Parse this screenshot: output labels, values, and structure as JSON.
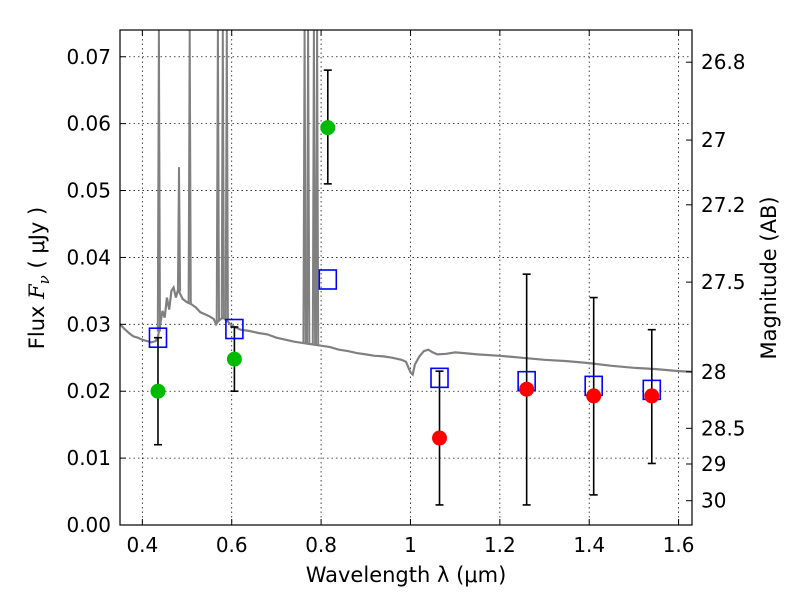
{
  "chart_data": {
    "type": "scatter",
    "xlabel": "Wavelength  λ (μm)",
    "ylabel": "Flux  F_ν  ( μJy )",
    "ylabel_parts": {
      "prefix": "Flux  ",
      "symbol": "F",
      "subscript": "ν",
      "suffix": "  ( μJy )"
    },
    "y2label": "Magnitude (AB)",
    "xlim": [
      0.35,
      1.63
    ],
    "ylim": [
      0.0,
      0.074
    ],
    "x_ticks": [
      {
        "value": 0.4,
        "label": "0.4"
      },
      {
        "value": 0.6,
        "label": "0.6"
      },
      {
        "value": 0.8,
        "label": "0.8"
      },
      {
        "value": 1.0,
        "label": "1"
      },
      {
        "value": 1.2,
        "label": "1.2"
      },
      {
        "value": 1.4,
        "label": "1.4"
      },
      {
        "value": 1.6,
        "label": "1.6"
      }
    ],
    "y_ticks": [
      {
        "value": 0.0,
        "label": "0.00"
      },
      {
        "value": 0.01,
        "label": "0.01"
      },
      {
        "value": 0.02,
        "label": "0.02"
      },
      {
        "value": 0.03,
        "label": "0.03"
      },
      {
        "value": 0.04,
        "label": "0.04"
      },
      {
        "value": 0.05,
        "label": "0.05"
      },
      {
        "value": 0.06,
        "label": "0.06"
      },
      {
        "value": 0.07,
        "label": "0.07"
      }
    ],
    "y2_ticks": [
      {
        "magnitude": 26.8,
        "label": "26.8"
      },
      {
        "magnitude": 27.0,
        "label": "27"
      },
      {
        "magnitude": 27.2,
        "label": "27.2"
      },
      {
        "magnitude": 27.5,
        "label": "27.5"
      },
      {
        "magnitude": 28.0,
        "label": "28"
      },
      {
        "magnitude": 28.5,
        "label": "28.5"
      },
      {
        "magnitude": 29.0,
        "label": "29"
      },
      {
        "magnitude": 30.0,
        "label": "30"
      }
    ],
    "grid": true,
    "colors": {
      "template": "#808080",
      "model": "#0000ff",
      "detection": "#00bb00",
      "upper_limit": "#ff0000",
      "errorbar": "#000000"
    },
    "template_spectrum": [
      [
        0.35,
        0.03
      ],
      [
        0.36,
        0.0293
      ],
      [
        0.37,
        0.0287
      ],
      [
        0.38,
        0.0282
      ],
      [
        0.39,
        0.028
      ],
      [
        0.4,
        0.0277
      ],
      [
        0.41,
        0.0275
      ],
      [
        0.42,
        0.0273
      ],
      [
        0.43,
        0.0275
      ],
      [
        0.435,
        0.0282
      ],
      [
        0.44,
        0.03
      ],
      [
        0.445,
        0.032
      ],
      [
        0.45,
        0.031
      ],
      [
        0.455,
        0.034
      ],
      [
        0.46,
        0.0322
      ],
      [
        0.465,
        0.035
      ],
      [
        0.47,
        0.0355
      ],
      [
        0.475,
        0.034
      ],
      [
        0.48,
        0.0352
      ],
      [
        0.485,
        0.0345
      ],
      [
        0.49,
        0.0338
      ],
      [
        0.5,
        0.0333
      ],
      [
        0.51,
        0.033
      ],
      [
        0.52,
        0.0325
      ],
      [
        0.53,
        0.0318
      ],
      [
        0.54,
        0.0315
      ],
      [
        0.55,
        0.0312
      ],
      [
        0.56,
        0.0308
      ],
      [
        0.565,
        0.03
      ],
      [
        0.57,
        0.0305
      ],
      [
        0.58,
        0.031
      ],
      [
        0.59,
        0.0305
      ],
      [
        0.6,
        0.0298
      ],
      [
        0.62,
        0.0292
      ],
      [
        0.64,
        0.029
      ],
      [
        0.66,
        0.0287
      ],
      [
        0.68,
        0.0285
      ],
      [
        0.7,
        0.028
      ],
      [
        0.72,
        0.0277
      ],
      [
        0.74,
        0.0274
      ],
      [
        0.76,
        0.0272
      ],
      [
        0.78,
        0.027
      ],
      [
        0.8,
        0.0268
      ],
      [
        0.82,
        0.0266
      ],
      [
        0.84,
        0.0262
      ],
      [
        0.86,
        0.026
      ],
      [
        0.88,
        0.0257
      ],
      [
        0.9,
        0.0255
      ],
      [
        0.92,
        0.0253
      ],
      [
        0.94,
        0.0252
      ],
      [
        0.96,
        0.025
      ],
      [
        0.98,
        0.0247
      ],
      [
        0.99,
        0.0244
      ],
      [
        1.0,
        0.0228
      ],
      [
        1.005,
        0.0225
      ],
      [
        1.01,
        0.024
      ],
      [
        1.02,
        0.0252
      ],
      [
        1.03,
        0.026
      ],
      [
        1.04,
        0.0262
      ],
      [
        1.05,
        0.0258
      ],
      [
        1.06,
        0.0255
      ],
      [
        1.08,
        0.0256
      ],
      [
        1.1,
        0.0258
      ],
      [
        1.12,
        0.0257
      ],
      [
        1.15,
        0.0255
      ],
      [
        1.2,
        0.0253
      ],
      [
        1.25,
        0.025
      ],
      [
        1.3,
        0.0247
      ],
      [
        1.35,
        0.0245
      ],
      [
        1.4,
        0.0242
      ],
      [
        1.45,
        0.0238
      ],
      [
        1.5,
        0.0235
      ],
      [
        1.55,
        0.0233
      ],
      [
        1.6,
        0.023
      ],
      [
        1.63,
        0.0229
      ]
    ],
    "emission_lines": [
      {
        "x": 0.437,
        "height": 0.074
      },
      {
        "x": 0.482,
        "height": 0.0535
      },
      {
        "x": 0.506,
        "height": 0.074
      },
      {
        "x": 0.569,
        "height": 0.074
      },
      {
        "x": 0.58,
        "height": 0.074
      },
      {
        "x": 0.589,
        "height": 0.074
      },
      {
        "x": 0.763,
        "height": 0.074
      },
      {
        "x": 0.771,
        "height": 0.074
      },
      {
        "x": 0.784,
        "height": 0.074
      },
      {
        "x": 0.791,
        "height": 0.074
      }
    ],
    "model_fluxes": [
      {
        "x": 0.435,
        "y": 0.028
      },
      {
        "x": 0.606,
        "y": 0.0293
      },
      {
        "x": 0.815,
        "y": 0.0367
      },
      {
        "x": 1.065,
        "y": 0.022
      },
      {
        "x": 1.26,
        "y": 0.0215
      },
      {
        "x": 1.41,
        "y": 0.0208
      },
      {
        "x": 1.54,
        "y": 0.0202
      }
    ],
    "detections": [
      {
        "x": 0.435,
        "y": 0.02,
        "ylo": 0.012,
        "yhi": 0.028
      },
      {
        "x": 0.606,
        "y": 0.0248,
        "ylo": 0.02,
        "yhi": 0.0296
      },
      {
        "x": 0.815,
        "y": 0.0594,
        "ylo": 0.051,
        "yhi": 0.068
      }
    ],
    "upper_limits": [
      {
        "x": 1.065,
        "y": 0.013,
        "ylo": 0.003,
        "yhi": 0.023
      },
      {
        "x": 1.26,
        "y": 0.0203,
        "ylo": 0.003,
        "yhi": 0.0375
      },
      {
        "x": 1.41,
        "y": 0.0193,
        "ylo": 0.0045,
        "yhi": 0.034
      },
      {
        "x": 1.54,
        "y": 0.0193,
        "ylo": 0.0092,
        "yhi": 0.0292
      }
    ]
  }
}
